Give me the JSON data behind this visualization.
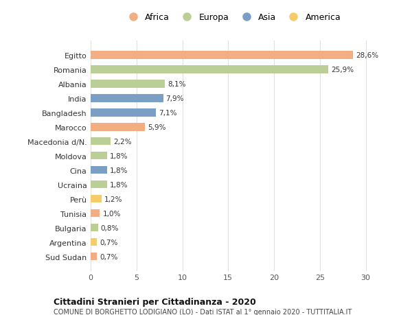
{
  "categories": [
    "Egitto",
    "Romania",
    "Albania",
    "India",
    "Bangladesh",
    "Marocco",
    "Macedonia d/N.",
    "Moldova",
    "Cina",
    "Ucraina",
    "Perù",
    "Tunisia",
    "Bulgaria",
    "Argentina",
    "Sud Sudan"
  ],
  "values": [
    28.6,
    25.9,
    8.1,
    7.9,
    7.1,
    5.9,
    2.2,
    1.8,
    1.8,
    1.8,
    1.2,
    1.0,
    0.8,
    0.7,
    0.7
  ],
  "labels": [
    "28,6%",
    "25,9%",
    "8,1%",
    "7,9%",
    "7,1%",
    "5,9%",
    "2,2%",
    "1,8%",
    "1,8%",
    "1,8%",
    "1,2%",
    "1,0%",
    "0,8%",
    "0,7%",
    "0,7%"
  ],
  "continents": [
    "Africa",
    "Europa",
    "Europa",
    "Asia",
    "Asia",
    "Africa",
    "Europa",
    "Europa",
    "Asia",
    "Europa",
    "America",
    "Africa",
    "Europa",
    "America",
    "Africa"
  ],
  "continent_colors": {
    "Africa": "#F2AD82",
    "Europa": "#BACE96",
    "Asia": "#7B9EC4",
    "America": "#F5CC6A"
  },
  "legend_order": [
    "Africa",
    "Europa",
    "Asia",
    "America"
  ],
  "title1": "Cittadini Stranieri per Cittadinanza - 2020",
  "title2": "COMUNE DI BORGHETTO LODIGIANO (LO) - Dati ISTAT al 1° gennaio 2020 - TUTTITALIA.IT",
  "xlim": [
    0,
    31
  ],
  "xticks": [
    0,
    5,
    10,
    15,
    20,
    25,
    30
  ],
  "background_color": "#ffffff",
  "grid_color": "#e0e0e0",
  "bar_height": 0.55
}
